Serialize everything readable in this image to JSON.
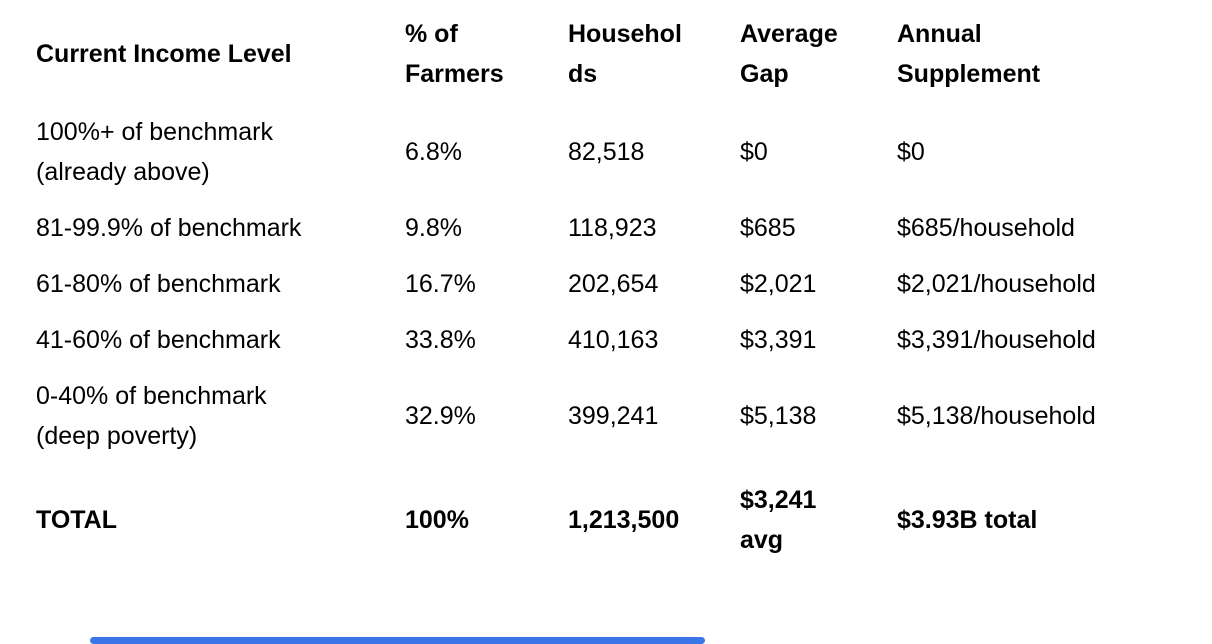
{
  "page": {
    "background_color": "#ffffff",
    "text_color": "#000000"
  },
  "table": {
    "columns": [
      {
        "id": "income-level",
        "label": "Current Income Level"
      },
      {
        "id": "pct-farmers",
        "label": [
          "% of",
          "Farmers"
        ]
      },
      {
        "id": "households",
        "label": [
          "Househol",
          "ds"
        ]
      },
      {
        "id": "average-gap",
        "label": [
          "Average",
          "Gap"
        ]
      },
      {
        "id": "annual-supplement",
        "label": [
          "Annual",
          "Supplement"
        ]
      }
    ],
    "rows": [
      {
        "emphasis": false,
        "cells": [
          [
            "100%+ of benchmark",
            "(already above)"
          ],
          "6.8%",
          "82,518",
          "$0",
          "$0"
        ]
      },
      {
        "emphasis": false,
        "cells": [
          "81-99.9% of benchmark",
          "9.8%",
          "118,923",
          "$685",
          "$685/household"
        ]
      },
      {
        "emphasis": false,
        "cells": [
          "61-80% of benchmark",
          "16.7%",
          "202,654",
          "$2,021",
          "$2,021/household"
        ]
      },
      {
        "emphasis": false,
        "cells": [
          "41-60% of benchmark",
          "33.8%",
          "410,163",
          "$3,391",
          "$3,391/household"
        ]
      },
      {
        "emphasis": false,
        "cells": [
          [
            "0-40% of benchmark",
            "(deep poverty)"
          ],
          "32.9%",
          "399,241",
          "$5,138",
          "$5,138/household"
        ]
      },
      {
        "emphasis": true,
        "cells": [
          "TOTAL",
          "100%",
          "1,213,500",
          [
            "$3,241",
            "avg"
          ],
          "$3.93B total"
        ]
      }
    ]
  },
  "footer_bar": {
    "color": "#3b76e8"
  }
}
